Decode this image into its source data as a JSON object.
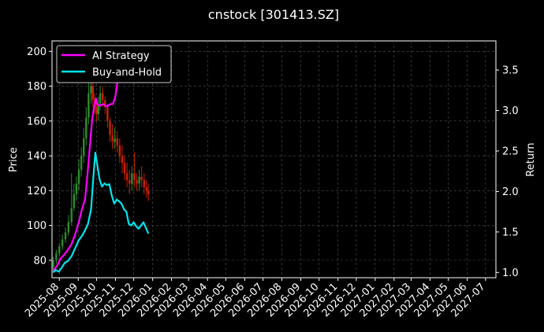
{
  "chart_data": {
    "type": "line",
    "title": "cnstock [301413.SZ]",
    "xlabel": "",
    "ylabel_left": "Price",
    "ylabel_right": "Return",
    "x_ticks": [
      "2025-08",
      "2025-09",
      "2025-10",
      "2025-11",
      "2025-12",
      "2026-01",
      "2026-02",
      "2026-03",
      "2026-04",
      "2026-05",
      "2026-06",
      "2026-07",
      "2026-08",
      "2026-09",
      "2026-10",
      "2026-11",
      "2026-12",
      "2027-01",
      "2027-02",
      "2027-03",
      "2027-04",
      "2027-05",
      "2027-06",
      "2027-07"
    ],
    "x_range": [
      "2025-07-20",
      "2027-07-18"
    ],
    "y_left_ticks": [
      80,
      100,
      120,
      140,
      160,
      180,
      200
    ],
    "y_left_range": [
      70,
      206
    ],
    "y_right_ticks": [
      1.0,
      1.5,
      2.0,
      2.5,
      3.0,
      3.5
    ],
    "y_right_range": [
      0.935,
      3.86
    ],
    "grid": true,
    "legend_position": "top-left",
    "series": [
      {
        "name": "AI Strategy",
        "axis": "right",
        "color": "#ff00ff",
        "x": [
          "2025-07-22",
          "2025-07-28",
          "2025-08-03",
          "2025-08-09",
          "2025-08-15",
          "2025-08-21",
          "2025-08-27",
          "2025-09-02",
          "2025-09-07",
          "2025-09-12",
          "2025-09-16",
          "2025-09-20",
          "2025-09-24",
          "2025-09-27",
          "2025-09-30",
          "2025-10-02",
          "2025-10-06",
          "2025-10-12",
          "2025-10-18",
          "2025-10-24",
          "2025-10-28",
          "2025-11-01",
          "2025-11-05",
          "2025-11-08"
        ],
        "values": [
          1.02,
          1.08,
          1.17,
          1.22,
          1.28,
          1.35,
          1.47,
          1.62,
          1.78,
          1.9,
          2.2,
          2.55,
          2.9,
          3.05,
          3.15,
          3.08,
          3.06,
          3.08,
          3.05,
          3.08,
          3.08,
          3.18,
          3.38,
          3.55
        ]
      },
      {
        "name": "Buy-and-Hold",
        "axis": "right",
        "color": "#00e5ee",
        "x": [
          "2025-07-22",
          "2025-07-26",
          "2025-07-31",
          "2025-08-05",
          "2025-08-10",
          "2025-08-15",
          "2025-08-21",
          "2025-08-27",
          "2025-09-02",
          "2025-09-07",
          "2025-09-12",
          "2025-09-17",
          "2025-09-22",
          "2025-09-26",
          "2025-09-29",
          "2025-10-02",
          "2025-10-06",
          "2025-10-10",
          "2025-10-14",
          "2025-10-18",
          "2025-10-22",
          "2025-10-26",
          "2025-10-30",
          "2025-11-03",
          "2025-11-07",
          "2025-11-11",
          "2025-11-15",
          "2025-11-19",
          "2025-11-23",
          "2025-11-27",
          "2025-12-01",
          "2025-12-05",
          "2025-12-09",
          "2025-12-13",
          "2025-12-17",
          "2025-12-21",
          "2025-12-25"
        ],
        "values": [
          1.0,
          1.03,
          1.01,
          1.06,
          1.12,
          1.14,
          1.2,
          1.3,
          1.4,
          1.45,
          1.52,
          1.6,
          1.78,
          2.2,
          2.48,
          2.34,
          2.15,
          2.06,
          2.1,
          2.08,
          2.09,
          1.95,
          1.85,
          1.9,
          1.88,
          1.85,
          1.78,
          1.75,
          1.6,
          1.58,
          1.62,
          1.57,
          1.54,
          1.58,
          1.62,
          1.55,
          1.48
        ]
      }
    ],
    "candles": {
      "axis": "left",
      "up_color": "#2e8b2e",
      "down_color": "#cc2200",
      "x": [
        "2025-07-22",
        "2025-07-27",
        "2025-08-01",
        "2025-08-06",
        "2025-08-11",
        "2025-08-16",
        "2025-08-21",
        "2025-08-25",
        "2025-08-29",
        "2025-09-02",
        "2025-09-06",
        "2025-09-10",
        "2025-09-14",
        "2025-09-18",
        "2025-09-22",
        "2025-09-25",
        "2025-09-28",
        "2025-10-01",
        "2025-10-04",
        "2025-10-07",
        "2025-10-11",
        "2025-10-15",
        "2025-10-19",
        "2025-10-23",
        "2025-10-27",
        "2025-10-31",
        "2025-11-04",
        "2025-11-08",
        "2025-11-12",
        "2025-11-16",
        "2025-11-20",
        "2025-11-24",
        "2025-11-28",
        "2025-12-02",
        "2025-12-06",
        "2025-12-10",
        "2025-12-14",
        "2025-12-18",
        "2025-12-22",
        "2025-12-25"
      ],
      "open": [
        76,
        80,
        84,
        88,
        92,
        96,
        102,
        110,
        118,
        124,
        132,
        140,
        150,
        162,
        176,
        180,
        172,
        168,
        164,
        170,
        176,
        172,
        168,
        160,
        152,
        148,
        150,
        146,
        140,
        136,
        130,
        126,
        124,
        130,
        126,
        124,
        128,
        126,
        122,
        120
      ],
      "close": [
        80,
        84,
        88,
        92,
        96,
        102,
        110,
        118,
        124,
        132,
        140,
        150,
        162,
        176,
        180,
        172,
        168,
        164,
        170,
        176,
        172,
        168,
        160,
        152,
        148,
        150,
        146,
        140,
        136,
        130,
        126,
        124,
        130,
        126,
        124,
        128,
        126,
        122,
        120,
        118
      ],
      "high": [
        82,
        86,
        90,
        95,
        99,
        106,
        130,
        124,
        128,
        138,
        145,
        156,
        168,
        182,
        186,
        184,
        176,
        170,
        174,
        180,
        180,
        174,
        170,
        162,
        158,
        156,
        154,
        150,
        146,
        140,
        136,
        132,
        134,
        142,
        130,
        132,
        134,
        130,
        126,
        124
      ],
      "low": [
        74,
        78,
        82,
        86,
        90,
        94,
        100,
        108,
        114,
        120,
        128,
        136,
        146,
        158,
        170,
        168,
        164,
        160,
        160,
        166,
        168,
        164,
        156,
        148,
        144,
        144,
        142,
        136,
        130,
        126,
        122,
        118,
        120,
        122,
        120,
        120,
        122,
        118,
        116,
        114
      ]
    }
  }
}
